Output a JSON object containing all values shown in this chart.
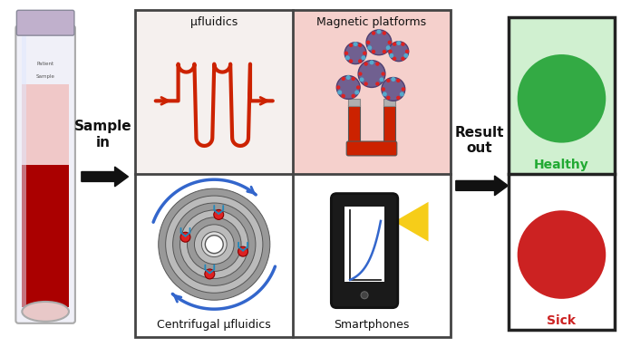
{
  "bg_color": "#ffffff",
  "grid_bg_top_left": "#f5f0ee",
  "grid_bg_top_right": "#f5d0cc",
  "grid_bg_bottom_left": "#ffffff",
  "grid_bg_bottom_right": "#ffffff",
  "label_microfluidics": "μfluidics",
  "label_magnetic": "Magnetic platforms",
  "label_centrifugal": "Centrifugal μfluidics",
  "label_smartphones": "Smartphones",
  "label_sample": "Sample\nin",
  "label_result": "Result\nout",
  "label_healthy": "Healthy",
  "label_sick": "Sick",
  "red_channel": "#cc2200",
  "magnet_red": "#cc2200",
  "bead_color": "#706090",
  "bead_edge": "#504070",
  "grid_line_color": "#444444",
  "result_top_bg": "#d8f5d8",
  "result_bot_bg": "#ffffff",
  "result_border": "#222222",
  "green_circle": "#33aa44",
  "red_circle": "#cc2222",
  "healthy_color": "#22aa33",
  "sick_color": "#cc2222"
}
